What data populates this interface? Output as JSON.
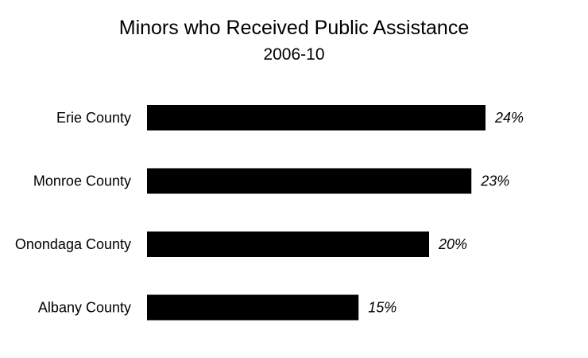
{
  "chart_data": {
    "type": "bar",
    "orientation": "horizontal",
    "title": "Minors who Received Public Assistance",
    "subtitle": "2006-10",
    "categories": [
      "Erie County",
      "Monroe County",
      "Onondaga County",
      "Albany County"
    ],
    "values": [
      24,
      23,
      20,
      15
    ],
    "value_labels": [
      "24%",
      "23%",
      "20%",
      "15%"
    ],
    "bar_color": "#000000",
    "xlim": [
      0,
      24
    ],
    "grid": false,
    "legend": "none"
  }
}
